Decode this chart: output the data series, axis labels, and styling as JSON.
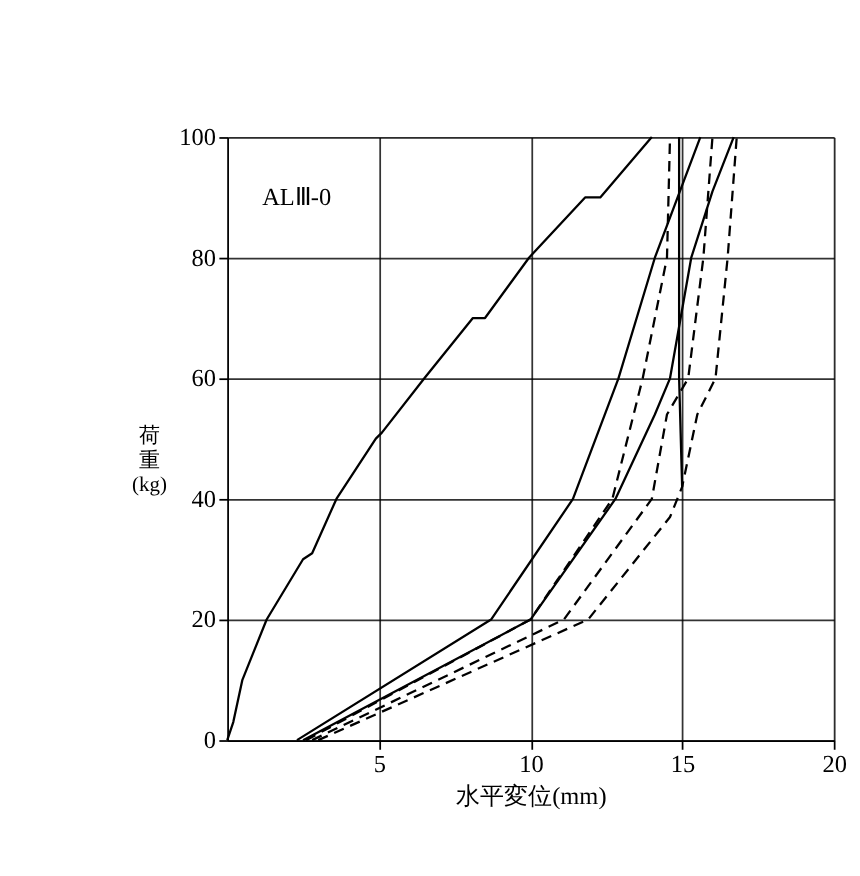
{
  "chart_data": {
    "type": "line",
    "xlabel": "水平変位(mm)",
    "ylabel": "荷重(kg)",
    "annotations": [
      "ALⅢ-0"
    ],
    "xlim": [
      0,
      20
    ],
    "xticks": [
      5,
      10,
      15,
      20
    ],
    "ylim": [
      0,
      100
    ],
    "yticks": [
      0,
      20,
      40,
      60,
      80,
      100
    ],
    "grid": true,
    "marker": "none",
    "series": [
      {
        "color": "#000000",
        "line_style": "solid",
        "x": [
          0,
          0.2,
          0.5,
          1.3,
          2.5,
          2.8,
          3.6,
          4.9,
          5.1,
          6.5,
          8.1,
          8.5,
          9.95,
          11.8,
          12.3,
          14.0
        ],
        "values": [
          0,
          3,
          10,
          20,
          30,
          31,
          40,
          50,
          51,
          60,
          70,
          70,
          80,
          90,
          90,
          100
        ]
      },
      {
        "color": "#000000",
        "line_style": "solid",
        "x": [
          2.3,
          8.7,
          11.4,
          12.9,
          14.1,
          15.6
        ],
        "values": [
          0,
          20,
          40,
          60,
          80,
          100
        ]
      },
      {
        "color": "#000000",
        "line_style": "solid",
        "x": [
          2.5,
          10,
          12.8,
          14.1,
          14.6,
          15.3,
          16.0,
          16.7
        ],
        "values": [
          0,
          20,
          40,
          54,
          60,
          80,
          91,
          100
        ]
      },
      {
        "color": "#000000",
        "line_style": "solid",
        "x": [
          15.0,
          14.9,
          14.9
        ],
        "values": [
          42,
          60,
          100
        ]
      },
      {
        "color": "#000000",
        "line_style": "dashed",
        "x": [
          2.6,
          10,
          12.7,
          13.4,
          13.7,
          14.5,
          14.6
        ],
        "values": [
          0,
          20,
          40,
          54,
          60,
          80,
          100
        ]
      },
      {
        "color": "#000000",
        "line_style": "dashed",
        "x": [
          2.8,
          11.1,
          14.0,
          14.5,
          15.2,
          15.7,
          16.0
        ],
        "values": [
          0,
          20,
          40,
          54,
          60,
          80,
          100
        ]
      },
      {
        "color": "#000000",
        "line_style": "dashed",
        "x": [
          3.0,
          11.9,
          14.6,
          15.0,
          15.5,
          16.1,
          16.5,
          16.8
        ],
        "values": [
          0,
          20,
          37,
          42,
          54,
          60,
          80,
          100
        ]
      }
    ]
  }
}
